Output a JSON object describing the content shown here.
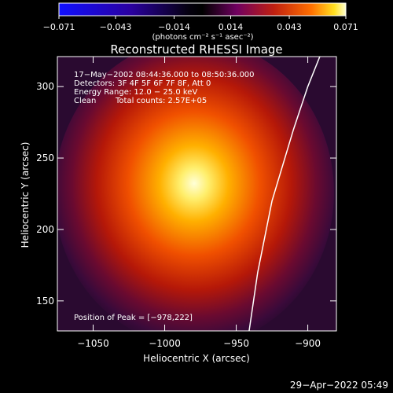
{
  "colorbar": {
    "ticks": [
      "−0.071",
      "−0.043",
      "−0.014",
      "0.014",
      "0.043",
      "0.071"
    ],
    "values": [
      -0.071,
      -0.043,
      -0.014,
      0.014,
      0.043,
      0.071
    ],
    "units": "(photons cm⁻² s⁻¹ asec⁻²)"
  },
  "chart_data": {
    "type": "heatmap",
    "title": "Reconstructed RHESSI Image",
    "xlabel": "Heliocentric X (arcsec)",
    "ylabel": "Heliocentric Y (arcsec)",
    "xlim": [
      -1075,
      -880
    ],
    "ylim": [
      129,
      321
    ],
    "x_ticks": [
      -1050,
      -1000,
      -950,
      -900
    ],
    "y_ticks": [
      150,
      200,
      250,
      300
    ],
    "x_tick_labels": [
      "−1050",
      "−1000",
      "−950",
      "−900"
    ],
    "y_tick_labels": [
      "150",
      "200",
      "250",
      "300"
    ],
    "peak": {
      "x": -978,
      "y": 222
    },
    "annotations": [
      "17−May−2002 08:44:36.000 to 08:50:36.000",
      "Detectors: 3F 4F 5F 6F 7F 8F, Att 0",
      "Energy Range: 12.0 − 25.0 keV",
      "Clean",
      "Total counts: 2.57E+05"
    ],
    "peak_label": "Position of Peak = [−978,222]",
    "limb_x": [
      -941,
      -935,
      -925,
      -910,
      -900,
      -890
    ],
    "limb_y": [
      129,
      170,
      220,
      270,
      300,
      325
    ]
  },
  "footer": {
    "timestamp": "29−Apr−2022 05:49"
  }
}
